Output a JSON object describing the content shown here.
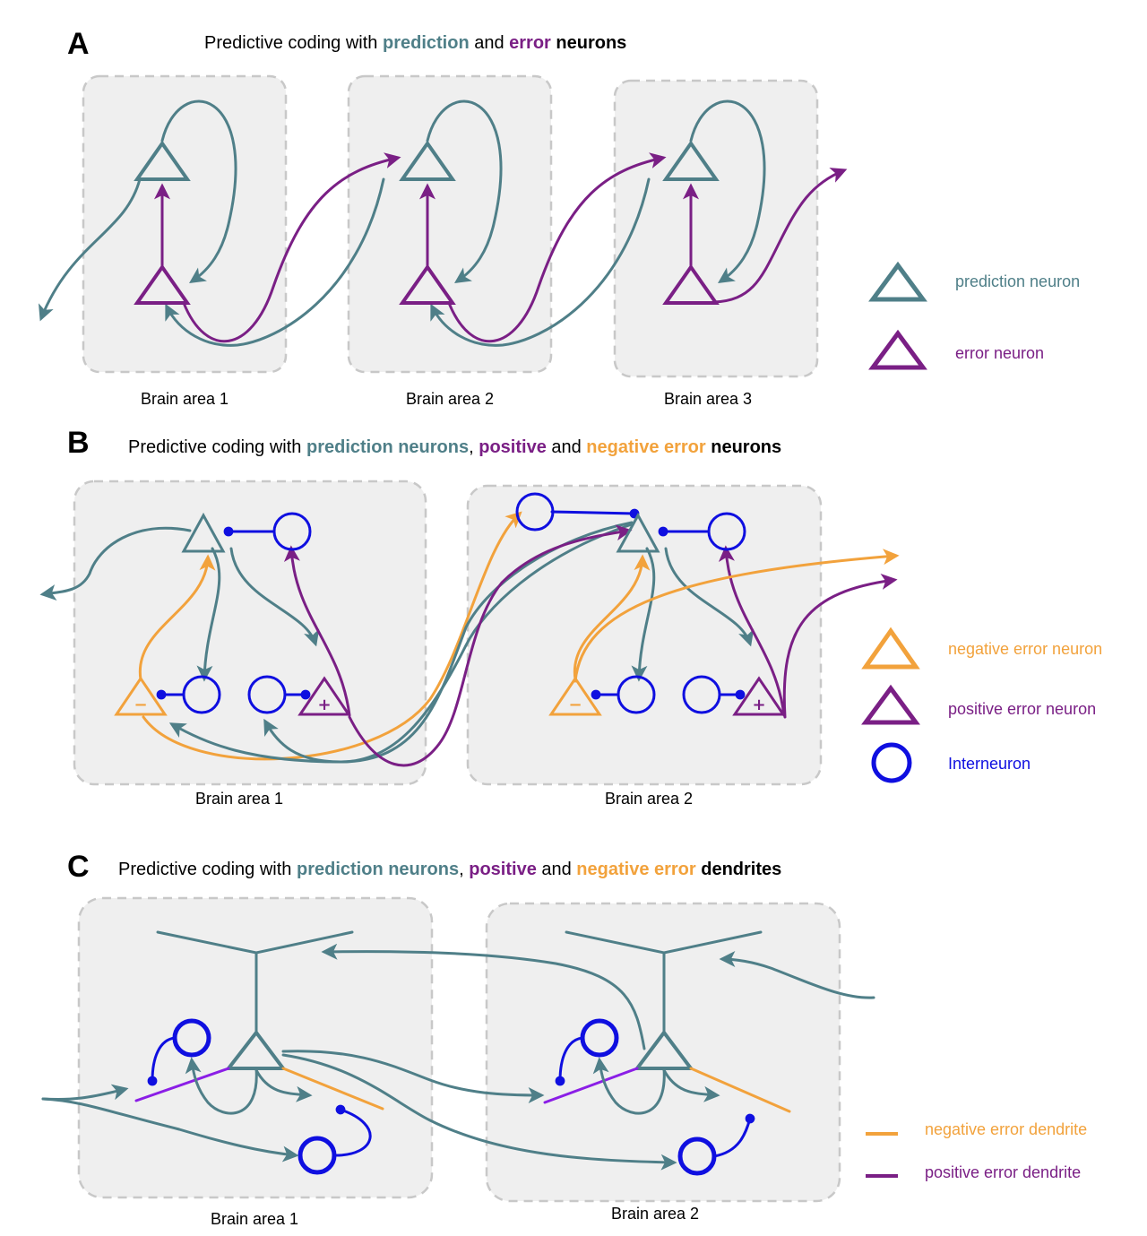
{
  "panels": {
    "A": {
      "letter": "A",
      "title": [
        {
          "text": "Predictive coding with ",
          "color": "#000000",
          "bold": false
        },
        {
          "text": "prediction",
          "color": "#4f7f88",
          "bold": true
        },
        {
          "text": " and ",
          "color": "#000000",
          "bold": false
        },
        {
          "text": "error",
          "color": "#7a1f85",
          "bold": true
        },
        {
          "text": " neurons",
          "color": "#000000",
          "bold": true
        }
      ],
      "areas": [
        "Brain area 1",
        "Brain area 2",
        "Brain area 3"
      ],
      "legend": [
        {
          "label": "prediction neuron",
          "color": "#4f7f88"
        },
        {
          "label": "error neuron",
          "color": "#7a1f85"
        }
      ]
    },
    "B": {
      "letter": "B",
      "title": [
        {
          "text": "Predictive coding with ",
          "color": "#000000",
          "bold": false
        },
        {
          "text": "prediction neurons",
          "color": "#4f7f88",
          "bold": true
        },
        {
          "text": ", ",
          "color": "#000000",
          "bold": false
        },
        {
          "text": "positive",
          "color": "#7a1f85",
          "bold": true
        },
        {
          "text": " and ",
          "color": "#000000",
          "bold": false
        },
        {
          "text": "negative error",
          "color": "#f2a23c",
          "bold": true
        },
        {
          "text": " neurons",
          "color": "#000000",
          "bold": true
        }
      ],
      "areas": [
        "Brain area 1",
        "Brain area 2"
      ],
      "minus_sign": "−",
      "plus_sign": "+",
      "legend": [
        {
          "label": "negative error neuron",
          "color": "#f2a23c"
        },
        {
          "label": "positive error neuron",
          "color": "#7a1f85"
        },
        {
          "label": "Interneuron",
          "color": "#0f0fe0"
        }
      ]
    },
    "C": {
      "letter": "C",
      "title": [
        {
          "text": "Predictive coding with ",
          "color": "#000000",
          "bold": false
        },
        {
          "text": "prediction neurons",
          "color": "#4f7f88",
          "bold": true
        },
        {
          "text": ", ",
          "color": "#000000",
          "bold": false
        },
        {
          "text": "positive",
          "color": "#7a1f85",
          "bold": true
        },
        {
          "text": " and ",
          "color": "#000000",
          "bold": false
        },
        {
          "text": "negative error",
          "color": "#f2a23c",
          "bold": true
        },
        {
          "text": " dendrites",
          "color": "#000000",
          "bold": true
        }
      ],
      "areas": [
        "Brain area 1",
        "Brain area 2"
      ],
      "legend": [
        {
          "label": "negative error dendrite",
          "color": "#f2a23c"
        },
        {
          "label": "positive error dendrite",
          "color": "#7a1f85"
        }
      ]
    }
  },
  "colors": {
    "prediction": "#4f7f88",
    "error": "#7a1f85",
    "negative_error": "#f2a23c",
    "interneuron": "#0f0fe0",
    "positive_dendrite": "#8b1ee6",
    "box_fill": "#efefef",
    "box_border": "#c8c8c8"
  }
}
